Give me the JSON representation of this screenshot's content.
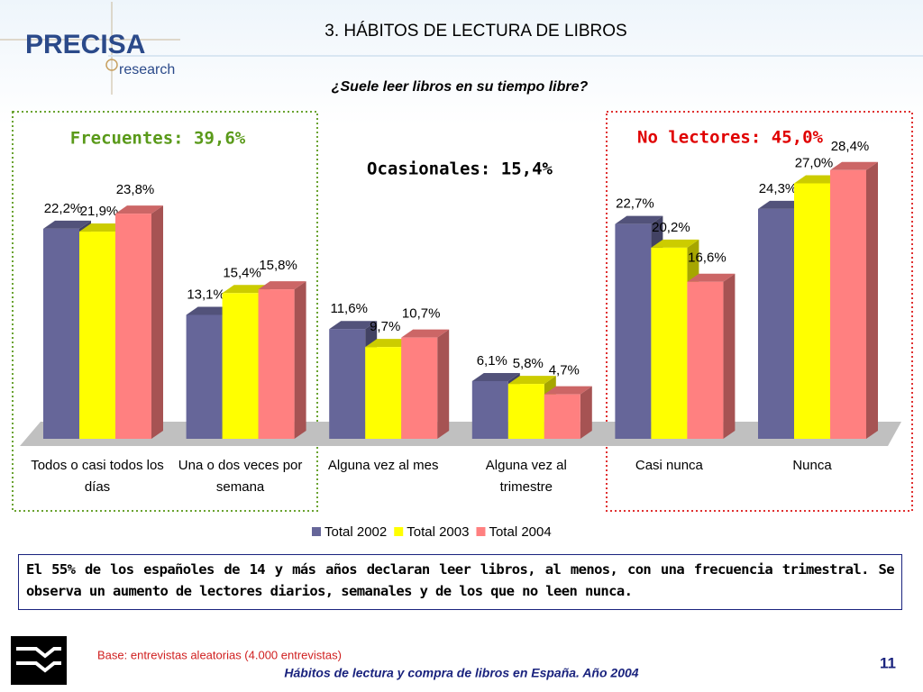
{
  "logo": {
    "name": "PRECISA",
    "tagline": "research"
  },
  "chart_data": {
    "type": "bar3d",
    "title": "3. HÁBITOS DE LECTURA DE LIBROS",
    "subtitle": "¿Suele leer libros en su tiempo libre?",
    "annotations": [
      "Frecuentes: 39,6%",
      "Ocasionales: 15,4%",
      "No lectores: 45,0%"
    ],
    "categories": [
      "Todos o casi todos los días",
      "Una o dos veces por semana",
      "Alguna vez al mes",
      "Alguna vez al trimestre",
      "Casi nunca",
      "Nunca"
    ],
    "series": [
      {
        "name": "Total 2002",
        "color": "#666699",
        "values": [
          22.2,
          13.1,
          11.6,
          6.1,
          22.7,
          24.3
        ],
        "value_labels": [
          "22,2%",
          "13,1%",
          "11,6%",
          "6,1%",
          "22,7%",
          "24,3%"
        ]
      },
      {
        "name": "Total 2003",
        "color": "#ffff00",
        "values": [
          21.9,
          15.4,
          9.7,
          5.8,
          20.2,
          27.0
        ],
        "value_labels": [
          "21,9%",
          "15,4%",
          "9,7%",
          "5,8%",
          "20,2%",
          "27,0%"
        ]
      },
      {
        "name": "Total 2004",
        "color": "#ff8080",
        "values": [
          23.8,
          15.8,
          10.7,
          4.7,
          16.6,
          28.4
        ],
        "value_labels": [
          "23,8%",
          "15,8%",
          "10,7%",
          "4,7%",
          "16,6%",
          "28,4%"
        ]
      }
    ],
    "ylim": [
      0,
      30
    ],
    "legend": "bottom"
  },
  "summary": "El 55% de los españoles de 14 y más años declaran leer libros, al menos, con una frecuencia trimestral. Se observa un aumento de lectores diarios, semanales y de los que no leen nunca.",
  "footer": {
    "base": "Base: entrevistas aleatorias (4.000 entrevistas)",
    "source": "Hábitos de lectura y compra de libros en España. Año 2004",
    "page": "11"
  }
}
